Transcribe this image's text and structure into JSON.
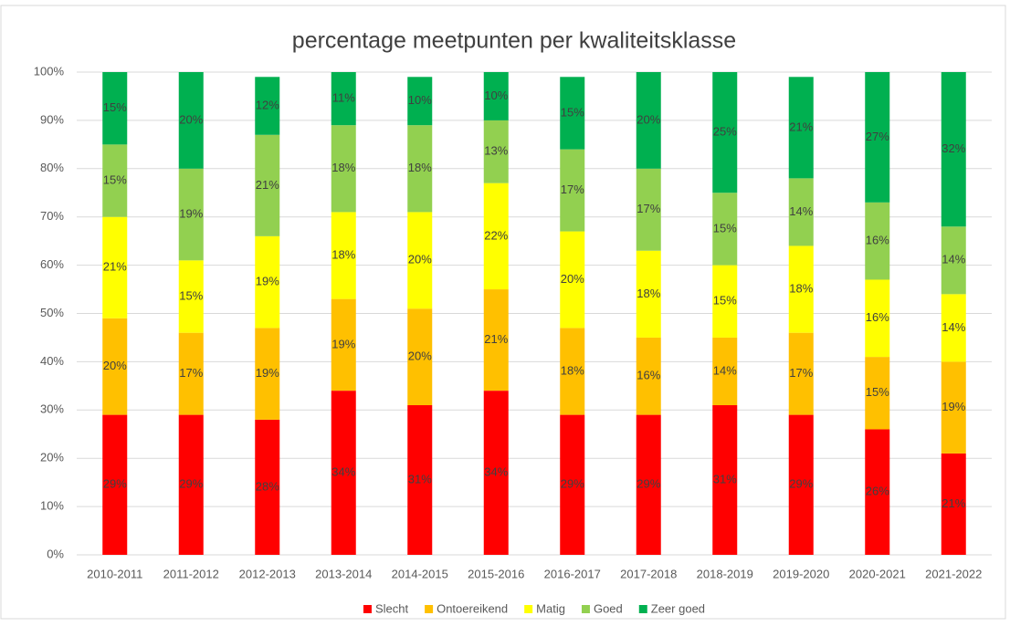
{
  "chart_data": {
    "type": "stacked-bar",
    "title": "percentage meetpunten per kwaliteitsklasse",
    "categories": [
      "2010-2011",
      "2011-2012",
      "2012-2013",
      "2013-2014",
      "2014-2015",
      "2015-2016",
      "2016-2017",
      "2017-2018",
      "2018-2019",
      "2019-2020",
      "2020-2021",
      "2021-2022"
    ],
    "series": [
      {
        "name": "Slecht",
        "color": "#ff0000",
        "values": [
          29,
          29,
          28,
          34,
          31,
          34,
          29,
          29,
          31,
          29,
          26,
          21
        ],
        "value_labels": [
          "29%",
          "29%",
          "28%",
          "34%",
          "31%",
          "34%",
          "29%",
          "29%",
          "31%",
          "29%",
          "26%",
          "21%"
        ]
      },
      {
        "name": "Ontoereikend",
        "color": "#ffc000",
        "values": [
          20,
          17,
          19,
          19,
          20,
          21,
          18,
          16,
          14,
          17,
          15,
          19
        ],
        "value_labels": [
          "20%",
          "17%",
          "19%",
          "19%",
          "20%",
          "21%",
          "18%",
          "16%",
          "14%",
          "17%",
          "15%",
          "19%"
        ]
      },
      {
        "name": "Matig",
        "color": "#ffff00",
        "values": [
          21,
          15,
          19,
          18,
          20,
          22,
          20,
          18,
          15,
          18,
          16,
          14
        ],
        "value_labels": [
          "21%",
          "15%",
          "19%",
          "18%",
          "20%",
          "22%",
          "20%",
          "18%",
          "15%",
          "18%",
          "16%",
          "14%"
        ]
      },
      {
        "name": "Goed",
        "color": "#92d050",
        "values": [
          15,
          19,
          21,
          18,
          18,
          13,
          17,
          17,
          15,
          14,
          16,
          14
        ],
        "value_labels": [
          "15%",
          "19%",
          "21%",
          "18%",
          "18%",
          "13%",
          "17%",
          "17%",
          "15%",
          "14%",
          "16%",
          "14%"
        ]
      },
      {
        "name": "Zeer goed",
        "color": "#00b050",
        "values": [
          15,
          20,
          12,
          11,
          10,
          10,
          15,
          20,
          25,
          21,
          27,
          32
        ],
        "value_labels": [
          "15%",
          "20%",
          "12%",
          "11%",
          "10%",
          "10%",
          "15%",
          "20%",
          "25%",
          "21%",
          "27%",
          "32%"
        ]
      }
    ],
    "ylim": [
      0,
      100
    ],
    "yticks": [
      {
        "value": 0,
        "label": "0%"
      },
      {
        "value": 10,
        "label": "10%"
      },
      {
        "value": 20,
        "label": "20%"
      },
      {
        "value": 30,
        "label": "30%"
      },
      {
        "value": 40,
        "label": "40%"
      },
      {
        "value": 50,
        "label": "50%"
      },
      {
        "value": 60,
        "label": "60%"
      },
      {
        "value": 70,
        "label": "70%"
      },
      {
        "value": 80,
        "label": "80%"
      },
      {
        "value": 90,
        "label": "90%"
      },
      {
        "value": 100,
        "label": "100%"
      }
    ],
    "grid": true,
    "legend": "bottom"
  }
}
